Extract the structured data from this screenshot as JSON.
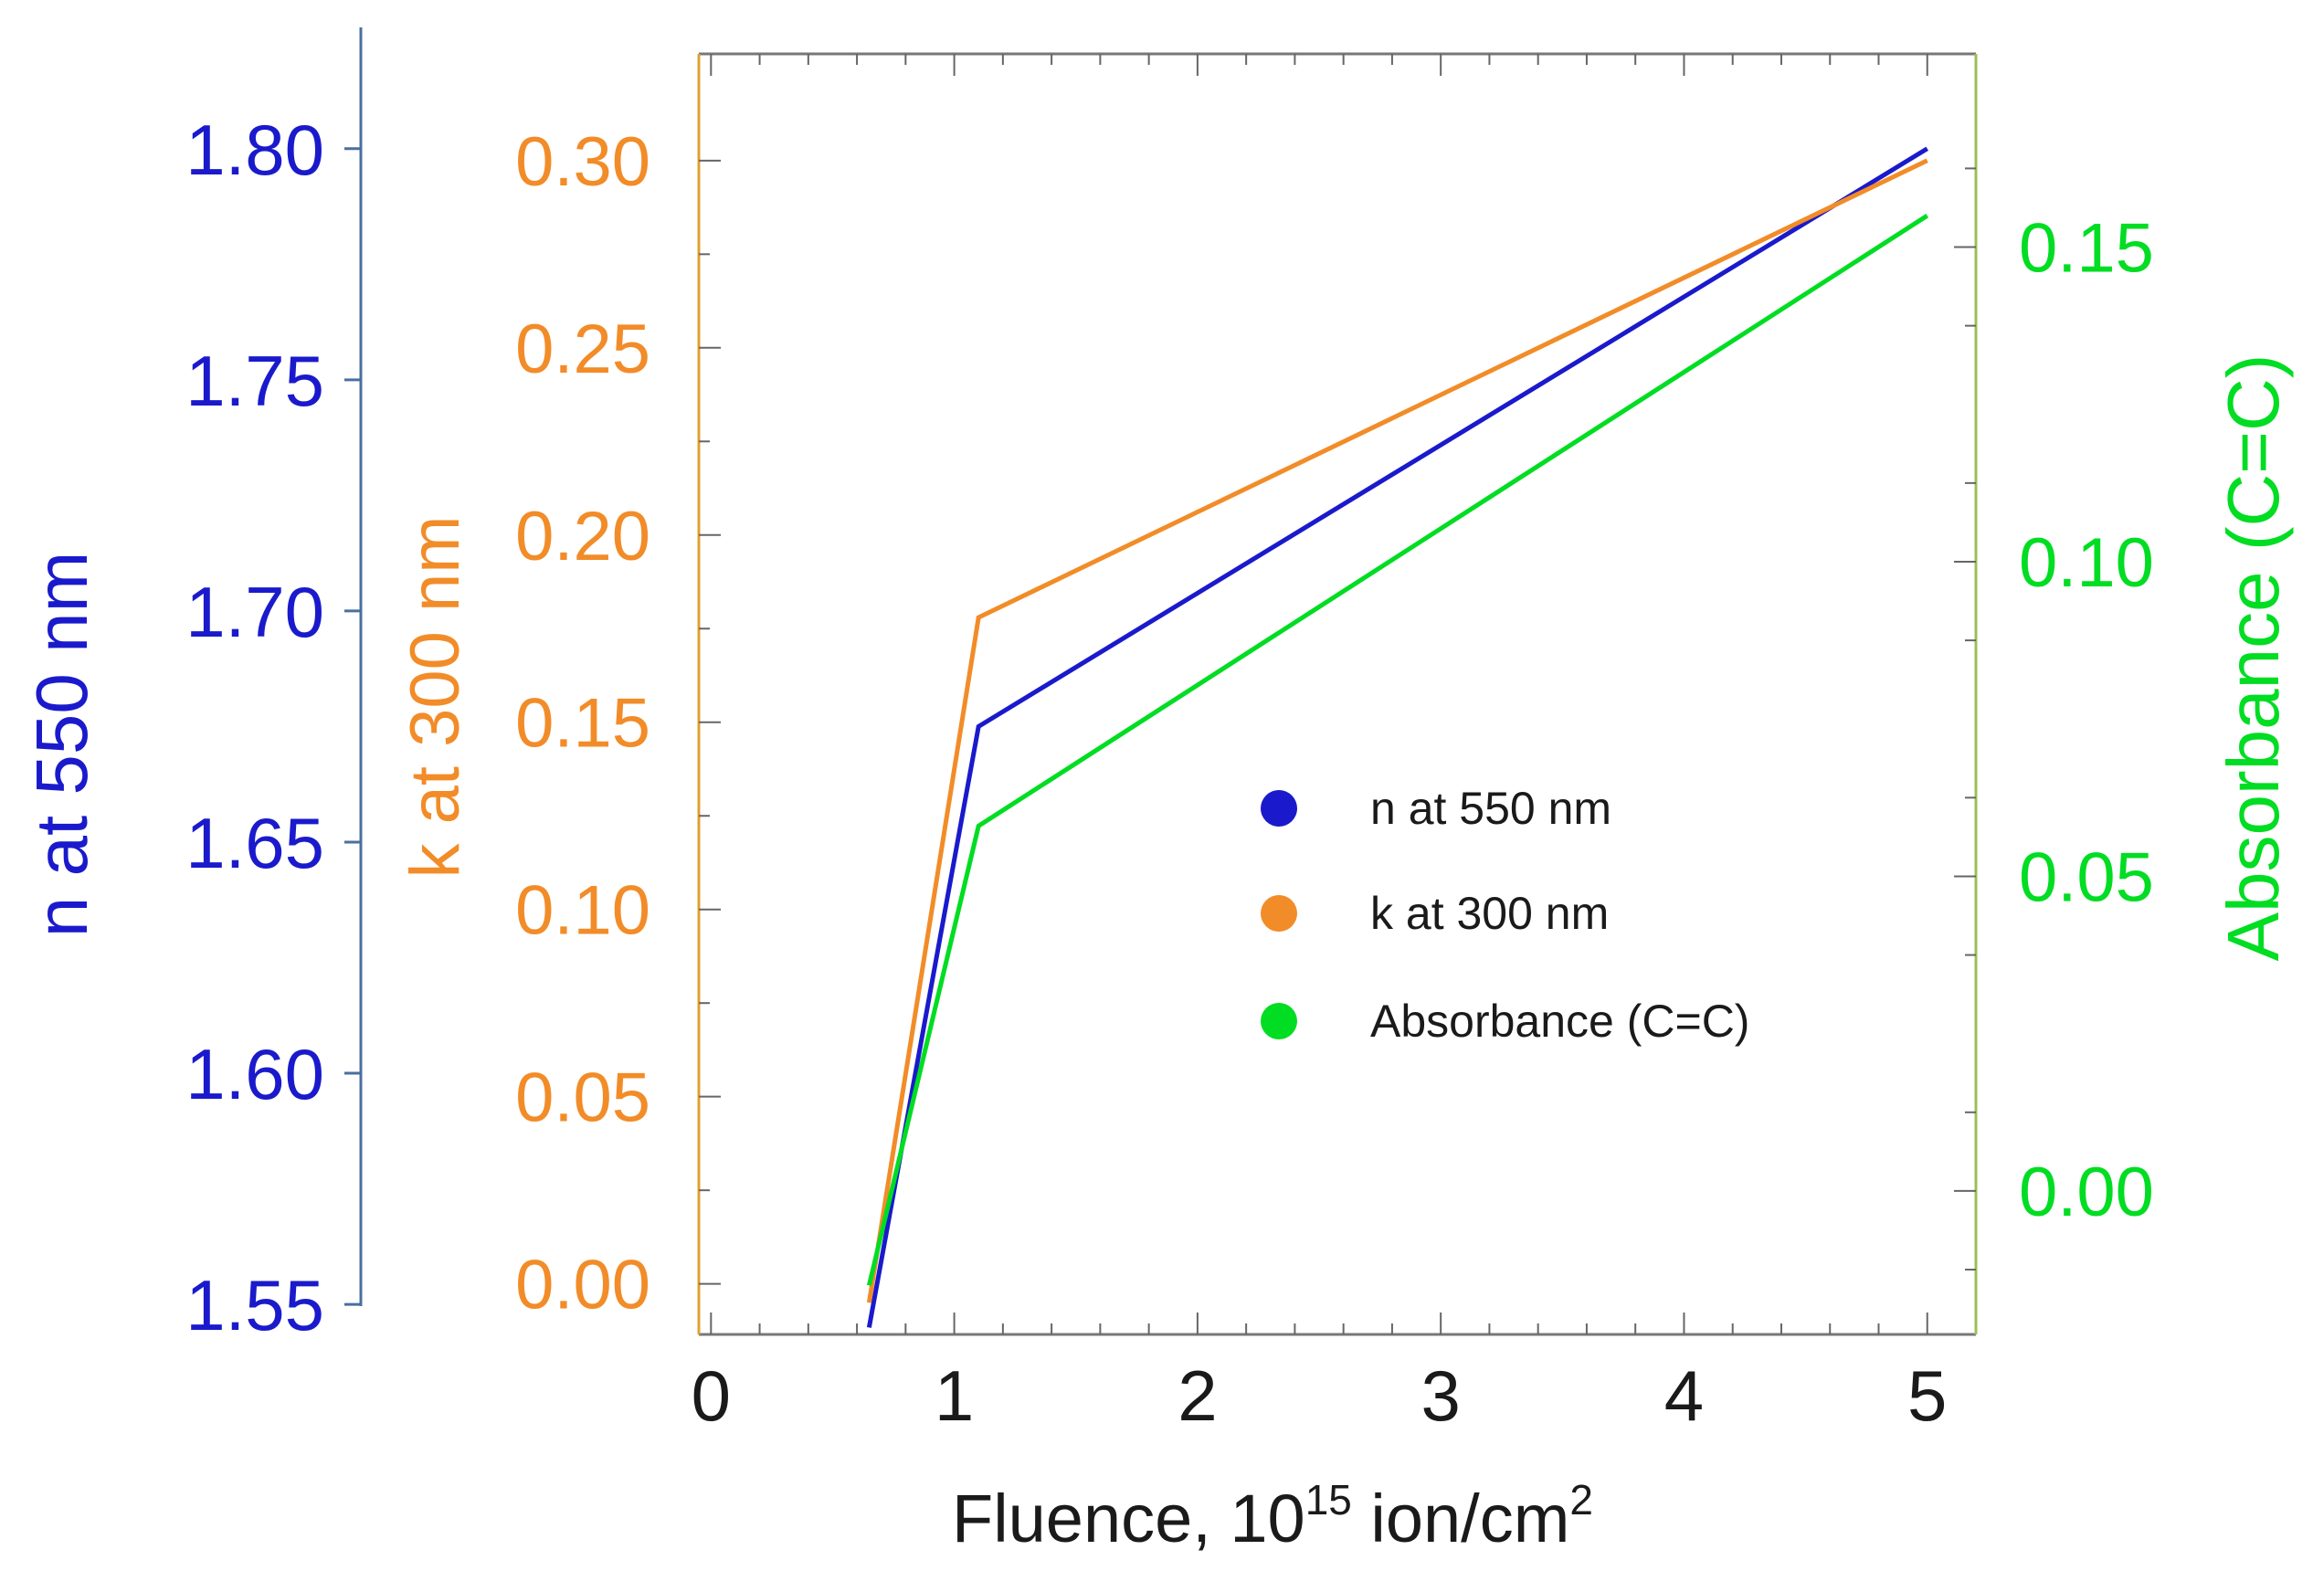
{
  "chart_data": {
    "type": "line",
    "title": "",
    "x": [
      0.65,
      1.1,
      5.0
    ],
    "xlabel_main": "Fluence, 10",
    "xlabel_sup1": "15",
    "xlabel_mid": " ion/cm",
    "xlabel_sup2": "2",
    "xlim": [
      -0.05,
      5.2
    ],
    "xticks": [
      "0",
      "1",
      "2",
      "3",
      "4",
      "5"
    ],
    "xtick_values": [
      0,
      1,
      2,
      3,
      4,
      5
    ],
    "series": [
      {
        "name": "n at 550 nm",
        "axis": "n",
        "color": "#1a1acc",
        "values": [
          1.545,
          1.675,
          1.8
        ]
      },
      {
        "name": "k at 300 nm",
        "axis": "k",
        "color": "#f28c28",
        "values": [
          -0.005,
          0.178,
          0.3
        ]
      },
      {
        "name": "Absorbance (C=C)",
        "axis": "abs",
        "color": "#00dd22",
        "values": [
          -0.015,
          0.058,
          0.155
        ]
      }
    ],
    "axes": {
      "n": {
        "label": "n at 550 nm",
        "color": "#1a1acc",
        "line_color": "#4a6fa0",
        "ylim": [
          1.5435,
          1.8205
        ],
        "ticks": [
          "1.55",
          "1.60",
          "1.65",
          "1.70",
          "1.75",
          "1.80"
        ],
        "tick_values": [
          1.55,
          1.6,
          1.65,
          1.7,
          1.75,
          1.8
        ]
      },
      "k": {
        "label": "k at 300 nm",
        "color": "#f28c28",
        "line_color": "#e0a030",
        "ylim": [
          -0.0135,
          0.3285
        ],
        "ticks": [
          "0.00",
          "0.05",
          "0.10",
          "0.15",
          "0.20",
          "0.25",
          "0.30"
        ],
        "tick_values": [
          0,
          0.05,
          0.1,
          0.15,
          0.2,
          0.25,
          0.3
        ]
      },
      "abs": {
        "label": "Absorbance (C=C)",
        "color": "#00dd22",
        "line_color": "#9cbf5a",
        "ylim": [
          -0.0228,
          0.1807
        ],
        "ticks": [
          "0.00",
          "0.05",
          "0.10",
          "0.15"
        ],
        "tick_values": [
          0,
          0.05,
          0.1,
          0.15
        ]
      }
    },
    "legend": {
      "position": "center-right",
      "entries": [
        {
          "label": "n at 550 nm",
          "color": "#1a1acc"
        },
        {
          "label": "k at 300 nm",
          "color": "#f28c28"
        },
        {
          "label": "Absorbance (C=C)",
          "color": "#00dd22"
        }
      ]
    }
  }
}
